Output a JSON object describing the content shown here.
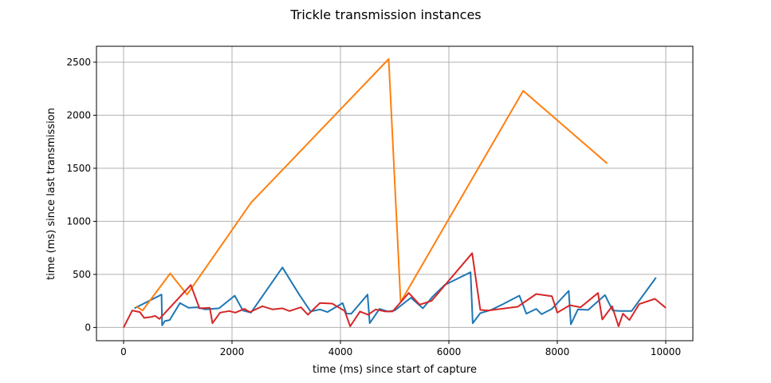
{
  "chart_data": {
    "type": "line",
    "title": "Trickle transmission instances",
    "xlabel": "time (ms) since start of capture",
    "ylabel": "time (ms) since last transmission",
    "xlim": [
      -500,
      10500
    ],
    "ylim": [
      -125,
      2650
    ],
    "xticks": [
      0,
      2000,
      4000,
      6000,
      8000,
      10000
    ],
    "yticks": [
      0,
      500,
      1000,
      1500,
      2000,
      2500
    ],
    "xtick_labels": [
      "0",
      "2000",
      "4000",
      "6000",
      "8000",
      "10000"
    ],
    "ytick_labels": [
      "0",
      "500",
      "1000",
      "1500",
      "2000",
      "2500"
    ],
    "grid": true,
    "legend": null,
    "series": [
      {
        "color": "#1f77b4",
        "points": [
          [
            200,
            180
          ],
          [
            700,
            310
          ],
          [
            710,
            20
          ],
          [
            760,
            60
          ],
          [
            850,
            70
          ],
          [
            1040,
            230
          ],
          [
            1200,
            185
          ],
          [
            1350,
            190
          ],
          [
            1510,
            170
          ],
          [
            1760,
            180
          ],
          [
            2050,
            300
          ],
          [
            2200,
            160
          ],
          [
            2350,
            140
          ],
          [
            2930,
            565
          ],
          [
            3240,
            310
          ],
          [
            3450,
            150
          ],
          [
            3620,
            170
          ],
          [
            3760,
            145
          ],
          [
            4040,
            230
          ],
          [
            4110,
            130
          ],
          [
            4200,
            130
          ],
          [
            4500,
            310
          ],
          [
            4540,
            40
          ],
          [
            4720,
            175
          ],
          [
            4880,
            150
          ],
          [
            5000,
            160
          ],
          [
            5300,
            280
          ],
          [
            5520,
            180
          ],
          [
            5700,
            290
          ],
          [
            5920,
            400
          ],
          [
            6120,
            450
          ],
          [
            6400,
            520
          ],
          [
            6440,
            40
          ],
          [
            6580,
            135
          ],
          [
            6780,
            165
          ],
          [
            7000,
            220
          ],
          [
            7300,
            300
          ],
          [
            7430,
            130
          ],
          [
            7610,
            175
          ],
          [
            7710,
            125
          ],
          [
            7900,
            175
          ],
          [
            8210,
            345
          ],
          [
            8250,
            30
          ],
          [
            8380,
            170
          ],
          [
            8570,
            165
          ],
          [
            8880,
            305
          ],
          [
            9020,
            160
          ],
          [
            9160,
            155
          ],
          [
            9370,
            155
          ],
          [
            9820,
            470
          ]
        ]
      },
      {
        "color": "#ff7f0e",
        "points": [
          [
            230,
            200
          ],
          [
            350,
            160
          ],
          [
            860,
            510
          ],
          [
            1170,
            310
          ],
          [
            2350,
            1175
          ],
          [
            4890,
            2530
          ],
          [
            5110,
            240
          ],
          [
            7370,
            2230
          ],
          [
            8920,
            1545
          ]
        ]
      },
      {
        "color": "#d62728",
        "points": [
          [
            0,
            0
          ],
          [
            160,
            160
          ],
          [
            300,
            145
          ],
          [
            380,
            90
          ],
          [
            520,
            100
          ],
          [
            580,
            110
          ],
          [
            660,
            80
          ],
          [
            1240,
            400
          ],
          [
            1400,
            180
          ],
          [
            1590,
            185
          ],
          [
            1640,
            40
          ],
          [
            1780,
            140
          ],
          [
            1950,
            155
          ],
          [
            2060,
            140
          ],
          [
            2230,
            175
          ],
          [
            2330,
            145
          ],
          [
            2560,
            200
          ],
          [
            2750,
            170
          ],
          [
            2930,
            180
          ],
          [
            3060,
            155
          ],
          [
            3270,
            190
          ],
          [
            3400,
            120
          ],
          [
            3620,
            230
          ],
          [
            3850,
            225
          ],
          [
            4080,
            155
          ],
          [
            4180,
            10
          ],
          [
            4360,
            150
          ],
          [
            4510,
            120
          ],
          [
            4650,
            170
          ],
          [
            4830,
            150
          ],
          [
            4960,
            150
          ],
          [
            5260,
            325
          ],
          [
            5460,
            215
          ],
          [
            5680,
            250
          ],
          [
            6430,
            700
          ],
          [
            6580,
            165
          ],
          [
            6730,
            160
          ],
          [
            7270,
            195
          ],
          [
            7610,
            315
          ],
          [
            7900,
            295
          ],
          [
            8000,
            140
          ],
          [
            8230,
            210
          ],
          [
            8430,
            190
          ],
          [
            8750,
            325
          ],
          [
            8830,
            75
          ],
          [
            9010,
            200
          ],
          [
            9130,
            10
          ],
          [
            9210,
            130
          ],
          [
            9330,
            70
          ],
          [
            9510,
            220
          ],
          [
            9800,
            270
          ],
          [
            10000,
            185
          ]
        ]
      }
    ]
  }
}
